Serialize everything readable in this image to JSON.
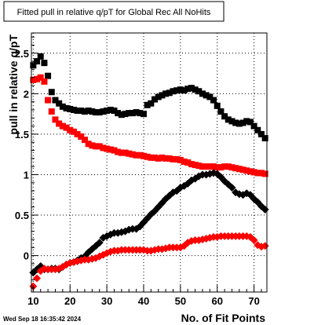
{
  "chart_data": {
    "type": "scatter",
    "title": "Fitted pull in relative q/pT for Global Rec All NoHits",
    "xlabel": "No. of Fit Points",
    "ylabel": "pull in relative q/pT",
    "xlim": [
      9.5,
      73.5
    ],
    "ylim": [
      -0.45,
      2.75
    ],
    "x_ticks": [
      "10",
      "20",
      "30",
      "40",
      "50",
      "60",
      "70"
    ],
    "y_ticks": [
      "0",
      "0.5",
      "1",
      "1.5",
      "2",
      "2.5"
    ],
    "grid": true,
    "series": [
      {
        "marker": "square",
        "color": "#000000",
        "x": [
          10,
          11,
          12,
          13,
          14,
          15,
          16,
          17,
          18,
          19,
          20,
          21,
          22,
          23,
          24,
          25,
          26,
          27,
          28,
          29,
          30,
          31,
          32,
          33,
          34,
          35,
          36,
          37,
          38,
          39,
          40,
          41,
          42,
          43,
          44,
          45,
          46,
          47,
          48,
          49,
          50,
          51,
          52,
          53,
          54,
          55,
          56,
          57,
          58,
          59,
          60,
          61,
          62,
          63,
          64,
          65,
          66,
          67,
          68,
          69,
          70,
          71,
          72,
          73
        ],
        "y": [
          2.35,
          2.4,
          2.46,
          2.38,
          2.22,
          2.02,
          1.92,
          1.88,
          1.84,
          1.82,
          1.81,
          1.8,
          1.79,
          1.79,
          1.78,
          1.79,
          1.78,
          1.77,
          1.77,
          1.78,
          1.79,
          1.8,
          1.79,
          1.76,
          1.74,
          1.75,
          1.76,
          1.76,
          1.77,
          1.76,
          1.75,
          1.86,
          1.88,
          1.93,
          1.96,
          1.98,
          2.0,
          2.01,
          2.03,
          2.04,
          2.05,
          2.04,
          2.06,
          2.07,
          2.05,
          2.03,
          2.0,
          1.98,
          1.96,
          1.92,
          1.85,
          1.78,
          1.72,
          1.68,
          1.66,
          1.64,
          1.63,
          1.64,
          1.66,
          1.65,
          1.6,
          1.55,
          1.5,
          1.45
        ]
      },
      {
        "marker": "square",
        "color": "#ff0000",
        "x": [
          10,
          11,
          12,
          13,
          14,
          15,
          16,
          17,
          18,
          19,
          20,
          21,
          22,
          23,
          24,
          25,
          26,
          27,
          28,
          29,
          30,
          31,
          32,
          33,
          34,
          35,
          36,
          37,
          38,
          39,
          40,
          41,
          42,
          43,
          44,
          45,
          46,
          47,
          48,
          49,
          50,
          51,
          52,
          53,
          54,
          55,
          56,
          57,
          58,
          59,
          60,
          61,
          62,
          63,
          64,
          65,
          66,
          67,
          68,
          69,
          70,
          71,
          72,
          73
        ],
        "y": [
          2.17,
          2.18,
          2.2,
          2.15,
          1.92,
          1.78,
          1.68,
          1.63,
          1.6,
          1.58,
          1.55,
          1.53,
          1.5,
          1.47,
          1.43,
          1.38,
          1.36,
          1.35,
          1.35,
          1.33,
          1.32,
          1.31,
          1.3,
          1.28,
          1.27,
          1.27,
          1.26,
          1.25,
          1.24,
          1.24,
          1.23,
          1.22,
          1.21,
          1.21,
          1.2,
          1.21,
          1.2,
          1.2,
          1.19,
          1.19,
          1.18,
          1.16,
          1.15,
          1.13,
          1.12,
          1.11,
          1.1,
          1.1,
          1.1,
          1.1,
          1.09,
          1.09,
          1.1,
          1.1,
          1.09,
          1.08,
          1.07,
          1.06,
          1.05,
          1.04,
          1.03,
          1.02,
          1.02,
          1.01
        ]
      },
      {
        "marker": "diamond",
        "color": "#000000",
        "x": [
          10,
          11,
          12,
          13,
          14,
          15,
          16,
          17,
          18,
          19,
          20,
          21,
          22,
          23,
          24,
          25,
          26,
          27,
          28,
          29,
          30,
          31,
          32,
          33,
          34,
          35,
          36,
          37,
          38,
          39,
          40,
          41,
          42,
          43,
          44,
          45,
          46,
          47,
          48,
          49,
          50,
          51,
          52,
          53,
          54,
          55,
          56,
          57,
          58,
          59,
          60,
          61,
          62,
          63,
          64,
          65,
          66,
          67,
          68,
          69,
          70,
          71,
          72,
          73
        ],
        "y": [
          -0.21,
          -0.17,
          -0.13,
          -0.17,
          -0.17,
          -0.16,
          -0.16,
          -0.17,
          -0.14,
          -0.11,
          -0.09,
          -0.08,
          -0.06,
          -0.03,
          -0.01,
          0.04,
          0.08,
          0.12,
          0.16,
          0.22,
          0.24,
          0.26,
          0.28,
          0.28,
          0.29,
          0.3,
          0.32,
          0.33,
          0.33,
          0.36,
          0.41,
          0.46,
          0.51,
          0.55,
          0.6,
          0.65,
          0.7,
          0.74,
          0.78,
          0.8,
          0.84,
          0.86,
          0.89,
          0.93,
          0.95,
          0.98,
          1.0,
          1.0,
          1.01,
          1.02,
          1.01,
          0.97,
          0.92,
          0.88,
          0.84,
          0.78,
          0.76,
          0.75,
          0.77,
          0.75,
          0.7,
          0.66,
          0.61,
          0.57
        ]
      },
      {
        "marker": "diamond",
        "color": "#ff0000",
        "x": [
          10,
          11,
          12,
          13,
          14,
          15,
          16,
          17,
          18,
          19,
          20,
          21,
          22,
          23,
          24,
          25,
          26,
          27,
          28,
          29,
          30,
          31,
          32,
          33,
          34,
          35,
          36,
          37,
          38,
          39,
          40,
          41,
          42,
          43,
          44,
          45,
          46,
          47,
          48,
          49,
          50,
          51,
          52,
          53,
          54,
          55,
          56,
          57,
          58,
          59,
          60,
          61,
          62,
          63,
          64,
          65,
          66,
          67,
          68,
          69,
          70,
          71,
          72,
          73
        ],
        "y": [
          -0.38,
          -0.28,
          -0.19,
          -0.16,
          -0.17,
          -0.17,
          -0.17,
          -0.16,
          -0.14,
          -0.11,
          -0.09,
          -0.08,
          -0.07,
          -0.06,
          -0.05,
          -0.05,
          -0.04,
          -0.03,
          -0.01,
          0.01,
          0.03,
          0.05,
          0.06,
          0.06,
          0.07,
          0.07,
          0.07,
          0.07,
          0.07,
          0.07,
          0.07,
          0.06,
          0.06,
          0.07,
          0.08,
          0.08,
          0.09,
          0.1,
          0.1,
          0.1,
          0.1,
          0.12,
          0.16,
          0.18,
          0.19,
          0.19,
          0.2,
          0.21,
          0.22,
          0.23,
          0.23,
          0.24,
          0.24,
          0.24,
          0.24,
          0.24,
          0.24,
          0.24,
          0.24,
          0.23,
          0.19,
          0.13,
          0.11,
          0.12
        ]
      }
    ]
  },
  "stamp": "Wed Sep 18 16:35:42 2024"
}
